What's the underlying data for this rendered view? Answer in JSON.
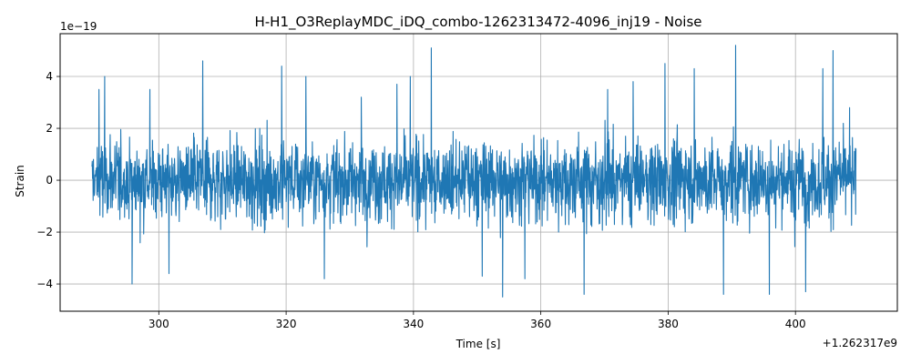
{
  "chart_data": {
    "type": "line",
    "title": "H-H1_O3ReplayMDC_iDQ_combo-1262313472-4096_inj19 - Noise",
    "xlabel": "Time [s]",
    "ylabel": "Strain",
    "x_offset_label": "+1.262317e9",
    "y_scale_label": "1e−19",
    "xlim": [
      284.5,
      416
    ],
    "ylim": [
      -5.05,
      5.65
    ],
    "x_ticks": [
      300,
      320,
      340,
      360,
      380,
      400
    ],
    "x_tick_labels": [
      "300",
      "320",
      "340",
      "360",
      "380",
      "400"
    ],
    "y_ticks": [
      -4,
      -2,
      0,
      2,
      4
    ],
    "y_tick_labels": [
      "−4",
      "−2",
      "0",
      "2",
      "4"
    ],
    "grid": true,
    "series": [
      {
        "color": "#1f77b4",
        "x_range": [
          289.5,
          409.5
        ],
        "typical_amplitude": 2.0,
        "peaks": [
          {
            "x": 290.6,
            "y": 3.5
          },
          {
            "x": 291.5,
            "y": 4.0
          },
          {
            "x": 295.8,
            "y": -4.0
          },
          {
            "x": 298.6,
            "y": 3.5
          },
          {
            "x": 301.6,
            "y": -3.6
          },
          {
            "x": 306.9,
            "y": 4.6
          },
          {
            "x": 319.3,
            "y": 4.4
          },
          {
            "x": 323.1,
            "y": 4.0
          },
          {
            "x": 326.0,
            "y": -3.8
          },
          {
            "x": 331.8,
            "y": 3.2
          },
          {
            "x": 337.4,
            "y": 3.7
          },
          {
            "x": 339.5,
            "y": 4.0
          },
          {
            "x": 342.8,
            "y": 5.1
          },
          {
            "x": 350.8,
            "y": -3.7
          },
          {
            "x": 354.0,
            "y": -4.5
          },
          {
            "x": 357.5,
            "y": -3.8
          },
          {
            "x": 366.8,
            "y": -4.4
          },
          {
            "x": 370.5,
            "y": 3.5
          },
          {
            "x": 374.5,
            "y": 3.8
          },
          {
            "x": 379.5,
            "y": 4.5
          },
          {
            "x": 384.1,
            "y": 4.3
          },
          {
            "x": 388.7,
            "y": -4.4
          },
          {
            "x": 390.6,
            "y": 5.2
          },
          {
            "x": 395.9,
            "y": -4.4
          },
          {
            "x": 401.6,
            "y": -4.3
          },
          {
            "x": 404.3,
            "y": 4.3
          },
          {
            "x": 405.9,
            "y": 5.0
          },
          {
            "x": 408.5,
            "y": 2.8
          }
        ]
      }
    ]
  }
}
